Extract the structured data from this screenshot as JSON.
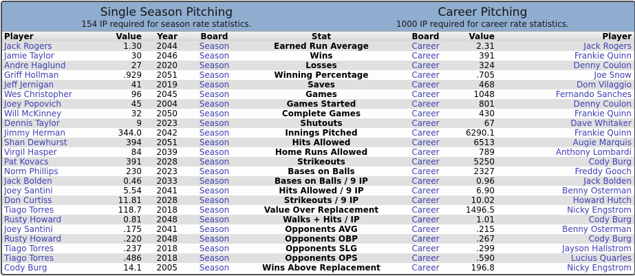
{
  "season_board_panel": {
    "title": "Single Season Pitching",
    "subtitle": "154 IP required for season rate statistics.",
    "col_player": "Player",
    "col_value": "Value",
    "col_year": "Year",
    "col_board": "Board"
  },
  "career_board_panel": {
    "title": "Career Pitching",
    "subtitle": "1000 IP required for career rate statistics.",
    "col_board": "Board",
    "col_value": "Value",
    "col_player": "Player"
  },
  "col_stat": "Stat",
  "colors": {
    "header_blue": "#8fadcf",
    "row_odd_gray": "#e0e0e0",
    "row_even_white": "#fdfdfd",
    "link_blue": "#4040b4"
  },
  "rows": [
    {
      "season_player": "Jack Rogers",
      "season_value": "1.30",
      "year": "2044",
      "season_board": "Season",
      "stat": "Earned Run Average",
      "career_board": "Career",
      "career_value": "2.31",
      "career_player": "Jack Rogers"
    },
    {
      "season_player": "Jamie Taylor",
      "season_value": "30",
      "year": "2046",
      "season_board": "Season",
      "stat": "Wins",
      "career_board": "Career",
      "career_value": "391",
      "career_player": "Frankie Quinn"
    },
    {
      "season_player": "Andre Haglund",
      "season_value": "27",
      "year": "2020",
      "season_board": "Season",
      "stat": "Losses",
      "career_board": "Career",
      "career_value": "324",
      "career_player": "Denny Coulon"
    },
    {
      "season_player": "Griff Hollman",
      "season_value": ".929",
      "year": "2051",
      "season_board": "Season",
      "stat": "Winning Percentage",
      "career_board": "Career",
      "career_value": ".705",
      "career_player": "Joe Snow"
    },
    {
      "season_player": "Jeff Jernigan",
      "season_value": "41",
      "year": "2019",
      "season_board": "Season",
      "stat": "Saves",
      "career_board": "Career",
      "career_value": "468",
      "career_player": "Dom Vilaggio"
    },
    {
      "season_player": "Wes Christopher",
      "season_value": "96",
      "year": "2045",
      "season_board": "Season",
      "stat": "Games",
      "career_board": "Career",
      "career_value": "1048",
      "career_player": "Fernando Sanches"
    },
    {
      "season_player": "Joey Popovich",
      "season_value": "45",
      "year": "2004",
      "season_board": "Season",
      "stat": "Games Started",
      "career_board": "Career",
      "career_value": "801",
      "career_player": "Denny Coulon"
    },
    {
      "season_player": "Will McKinney",
      "season_value": "32",
      "year": "2050",
      "season_board": "Season",
      "stat": "Complete Games",
      "career_board": "Career",
      "career_value": "430",
      "career_player": "Frankie Quinn"
    },
    {
      "season_player": "Dennis Taylor",
      "season_value": "9",
      "year": "2023",
      "season_board": "Season",
      "stat": "Shutouts",
      "career_board": "Career",
      "career_value": "67",
      "career_player": "Dave Whitaker"
    },
    {
      "season_player": "Jimmy Herman",
      "season_value": "344.0",
      "year": "2042",
      "season_board": "Season",
      "stat": "Innings Pitched",
      "career_board": "Career",
      "career_value": "6290.1",
      "career_player": "Frankie Quinn"
    },
    {
      "season_player": "Shan Dewhurst",
      "season_value": "394",
      "year": "2051",
      "season_board": "Season",
      "stat": "Hits Allowed",
      "career_board": "Career",
      "career_value": "6513",
      "career_player": "Augie Marquis"
    },
    {
      "season_player": "Virgil Hasper",
      "season_value": "84",
      "year": "2039",
      "season_board": "Season",
      "stat": "Home Runs Allowed",
      "career_board": "Career",
      "career_value": "789",
      "career_player": "Anthony Lombardi"
    },
    {
      "season_player": "Pat Kovacs",
      "season_value": "391",
      "year": "2028",
      "season_board": "Season",
      "stat": "Strikeouts",
      "career_board": "Career",
      "career_value": "5250",
      "career_player": "Cody Burg"
    },
    {
      "season_player": "Norm Phillips",
      "season_value": "230",
      "year": "2023",
      "season_board": "Season",
      "stat": "Bases on Balls",
      "career_board": "Career",
      "career_value": "2327",
      "career_player": "Freddy Gooch"
    },
    {
      "season_player": "Jack Bolden",
      "season_value": "0.46",
      "year": "2033",
      "season_board": "Season",
      "stat": "Bases on Balls / 9 IP",
      "career_board": "Career",
      "career_value": "0.96",
      "career_player": "Jack Bolden"
    },
    {
      "season_player": "Joey Santini",
      "season_value": "5.54",
      "year": "2041",
      "season_board": "Season",
      "stat": "Hits Allowed / 9 IP",
      "career_board": "Career",
      "career_value": "6.90",
      "career_player": "Benny Osterman"
    },
    {
      "season_player": "Don Curtiss",
      "season_value": "11.81",
      "year": "2028",
      "season_board": "Season",
      "stat": "Strikeouts / 9 IP",
      "career_board": "Career",
      "career_value": "10.02",
      "career_player": "Howard Hutch"
    },
    {
      "season_player": "Tiago Torres",
      "season_value": "118.7",
      "year": "2018",
      "season_board": "Season",
      "stat": "Value Over Replacement",
      "career_board": "Career",
      "career_value": "1496.5",
      "career_player": "Nicky Engstrom"
    },
    {
      "season_player": "Rusty Howard",
      "season_value": "0.81",
      "year": "2048",
      "season_board": "Season",
      "stat": "Walks + Hits / IP",
      "career_board": "Career",
      "career_value": "1.01",
      "career_player": "Cody Burg"
    },
    {
      "season_player": "Joey Santini",
      "season_value": ".175",
      "year": "2041",
      "season_board": "Season",
      "stat": "Opponents AVG",
      "career_board": "Career",
      "career_value": ".215",
      "career_player": "Benny Osterman"
    },
    {
      "season_player": "Rusty Howard",
      "season_value": ".220",
      "year": "2048",
      "season_board": "Season",
      "stat": "Opponents OBP",
      "career_board": "Career",
      "career_value": ".267",
      "career_player": "Cody Burg"
    },
    {
      "season_player": "Tiago Torres",
      "season_value": ".237",
      "year": "2018",
      "season_board": "Season",
      "stat": "Opponents SLG",
      "career_board": "Career",
      "career_value": ".299",
      "career_player": "Jayson Hallstrom"
    },
    {
      "season_player": "Tiago Torres",
      "season_value": ".486",
      "year": "2018",
      "season_board": "Season",
      "stat": "Opponents OPS",
      "career_board": "Career",
      "career_value": ".590",
      "career_player": "Lucius Quarles"
    },
    {
      "season_player": "Cody Burg",
      "season_value": "14.1",
      "year": "2005",
      "season_board": "Season",
      "stat": "Wins Above Replacement",
      "career_board": "Career",
      "career_value": "196.8",
      "career_player": "Nicky Engstrom"
    }
  ]
}
